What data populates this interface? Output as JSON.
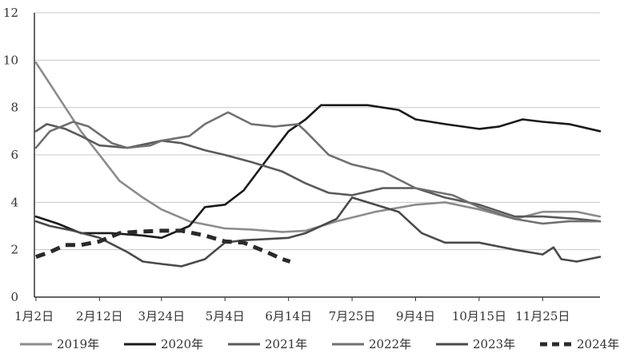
{
  "chart_data": {
    "type": "line",
    "title": "",
    "xlabel": "",
    "ylabel": "",
    "ylim": [
      0,
      12
    ],
    "yticks": [
      "0",
      "2",
      "4",
      "6",
      "8",
      "10",
      "12"
    ],
    "xlim": [
      0,
      365
    ],
    "xticks": [
      {
        "label": "1月2日",
        "day": 1
      },
      {
        "label": "2月12日",
        "day": 42
      },
      {
        "label": "3月24日",
        "day": 82
      },
      {
        "label": "5月4日",
        "day": 123
      },
      {
        "label": "6月14日",
        "day": 164
      },
      {
        "label": "7月25日",
        "day": 205
      },
      {
        "label": "9月4日",
        "day": 246
      },
      {
        "label": "10月15日",
        "day": 287
      },
      {
        "label": "11月25日",
        "day": 328
      }
    ],
    "grid": true,
    "legend_position": "bottom",
    "series": [
      {
        "name": "2019年",
        "color": "#8c8c8c",
        "dash": "solid",
        "points": [
          [
            1,
            9.9
          ],
          [
            10,
            9.0
          ],
          [
            20,
            8.0
          ],
          [
            30,
            7.0
          ],
          [
            42,
            6.0
          ],
          [
            55,
            4.9
          ],
          [
            70,
            4.2
          ],
          [
            82,
            3.7
          ],
          [
            100,
            3.2
          ],
          [
            123,
            2.9
          ],
          [
            140,
            2.85
          ],
          [
            160,
            2.75
          ],
          [
            175,
            2.8
          ],
          [
            195,
            3.2
          ],
          [
            220,
            3.6
          ],
          [
            246,
            3.9
          ],
          [
            265,
            4.0
          ],
          [
            287,
            3.7
          ],
          [
            310,
            3.3
          ],
          [
            328,
            3.6
          ],
          [
            350,
            3.6
          ],
          [
            365,
            3.4
          ]
        ]
      },
      {
        "name": "2020年",
        "color": "#1a1a1a",
        "dash": "solid",
        "points": [
          [
            1,
            3.4
          ],
          [
            15,
            3.1
          ],
          [
            30,
            2.7
          ],
          [
            50,
            2.7
          ],
          [
            70,
            2.6
          ],
          [
            82,
            2.5
          ],
          [
            100,
            3.0
          ],
          [
            110,
            3.8
          ],
          [
            123,
            3.9
          ],
          [
            135,
            4.5
          ],
          [
            150,
            5.8
          ],
          [
            164,
            7.0
          ],
          [
            175,
            7.5
          ],
          [
            185,
            8.1
          ],
          [
            200,
            8.1
          ],
          [
            215,
            8.1
          ],
          [
            235,
            7.9
          ],
          [
            246,
            7.5
          ],
          [
            265,
            7.3
          ],
          [
            287,
            7.1
          ],
          [
            300,
            7.2
          ],
          [
            315,
            7.5
          ],
          [
            328,
            7.4
          ],
          [
            345,
            7.3
          ],
          [
            365,
            7.0
          ]
        ]
      },
      {
        "name": "2021年",
        "color": "#5a5a5a",
        "dash": "solid",
        "points": [
          [
            1,
            7.0
          ],
          [
            8,
            7.3
          ],
          [
            20,
            7.1
          ],
          [
            30,
            6.8
          ],
          [
            42,
            6.4
          ],
          [
            60,
            6.3
          ],
          [
            82,
            6.6
          ],
          [
            95,
            6.5
          ],
          [
            110,
            6.2
          ],
          [
            123,
            6.0
          ],
          [
            140,
            5.7
          ],
          [
            160,
            5.3
          ],
          [
            175,
            4.8
          ],
          [
            190,
            4.4
          ],
          [
            205,
            4.3
          ],
          [
            225,
            4.6
          ],
          [
            246,
            4.6
          ],
          [
            265,
            4.2
          ],
          [
            287,
            3.9
          ],
          [
            310,
            3.4
          ],
          [
            328,
            3.4
          ],
          [
            350,
            3.3
          ],
          [
            365,
            3.2
          ]
        ]
      },
      {
        "name": "2022年",
        "color": "#707070",
        "dash": "solid",
        "points": [
          [
            1,
            6.3
          ],
          [
            10,
            7.0
          ],
          [
            25,
            7.4
          ],
          [
            35,
            7.2
          ],
          [
            50,
            6.5
          ],
          [
            60,
            6.3
          ],
          [
            75,
            6.4
          ],
          [
            82,
            6.6
          ],
          [
            100,
            6.8
          ],
          [
            110,
            7.3
          ],
          [
            125,
            7.8
          ],
          [
            140,
            7.3
          ],
          [
            155,
            7.2
          ],
          [
            170,
            7.3
          ],
          [
            175,
            7.0
          ],
          [
            190,
            6.0
          ],
          [
            205,
            5.6
          ],
          [
            225,
            5.3
          ],
          [
            246,
            4.6
          ],
          [
            270,
            4.3
          ],
          [
            287,
            3.8
          ],
          [
            310,
            3.3
          ],
          [
            328,
            3.1
          ],
          [
            345,
            3.2
          ],
          [
            365,
            3.2
          ]
        ]
      },
      {
        "name": "2023年",
        "color": "#4a4a4a",
        "dash": "solid",
        "points": [
          [
            1,
            3.2
          ],
          [
            10,
            3.0
          ],
          [
            25,
            2.8
          ],
          [
            42,
            2.5
          ],
          [
            60,
            1.9
          ],
          [
            70,
            1.5
          ],
          [
            82,
            1.4
          ],
          [
            95,
            1.3
          ],
          [
            110,
            1.6
          ],
          [
            123,
            2.3
          ],
          [
            135,
            2.4
          ],
          [
            150,
            2.45
          ],
          [
            164,
            2.5
          ],
          [
            175,
            2.7
          ],
          [
            195,
            3.3
          ],
          [
            205,
            4.2
          ],
          [
            215,
            4.0
          ],
          [
            235,
            3.6
          ],
          [
            250,
            2.7
          ],
          [
            265,
            2.3
          ],
          [
            287,
            2.3
          ],
          [
            310,
            2.0
          ],
          [
            328,
            1.8
          ],
          [
            335,
            2.1
          ],
          [
            340,
            1.6
          ],
          [
            350,
            1.5
          ],
          [
            365,
            1.7
          ]
        ]
      },
      {
        "name": "2024年",
        "color": "#2a2a2a",
        "dash": "dashed",
        "points": [
          [
            1,
            1.7
          ],
          [
            10,
            1.9
          ],
          [
            20,
            2.2
          ],
          [
            30,
            2.2
          ],
          [
            42,
            2.35
          ],
          [
            55,
            2.7
          ],
          [
            65,
            2.75
          ],
          [
            82,
            2.8
          ],
          [
            95,
            2.8
          ],
          [
            110,
            2.6
          ],
          [
            123,
            2.35
          ],
          [
            135,
            2.3
          ],
          [
            150,
            1.9
          ],
          [
            160,
            1.6
          ],
          [
            165,
            1.5
          ]
        ]
      }
    ]
  }
}
